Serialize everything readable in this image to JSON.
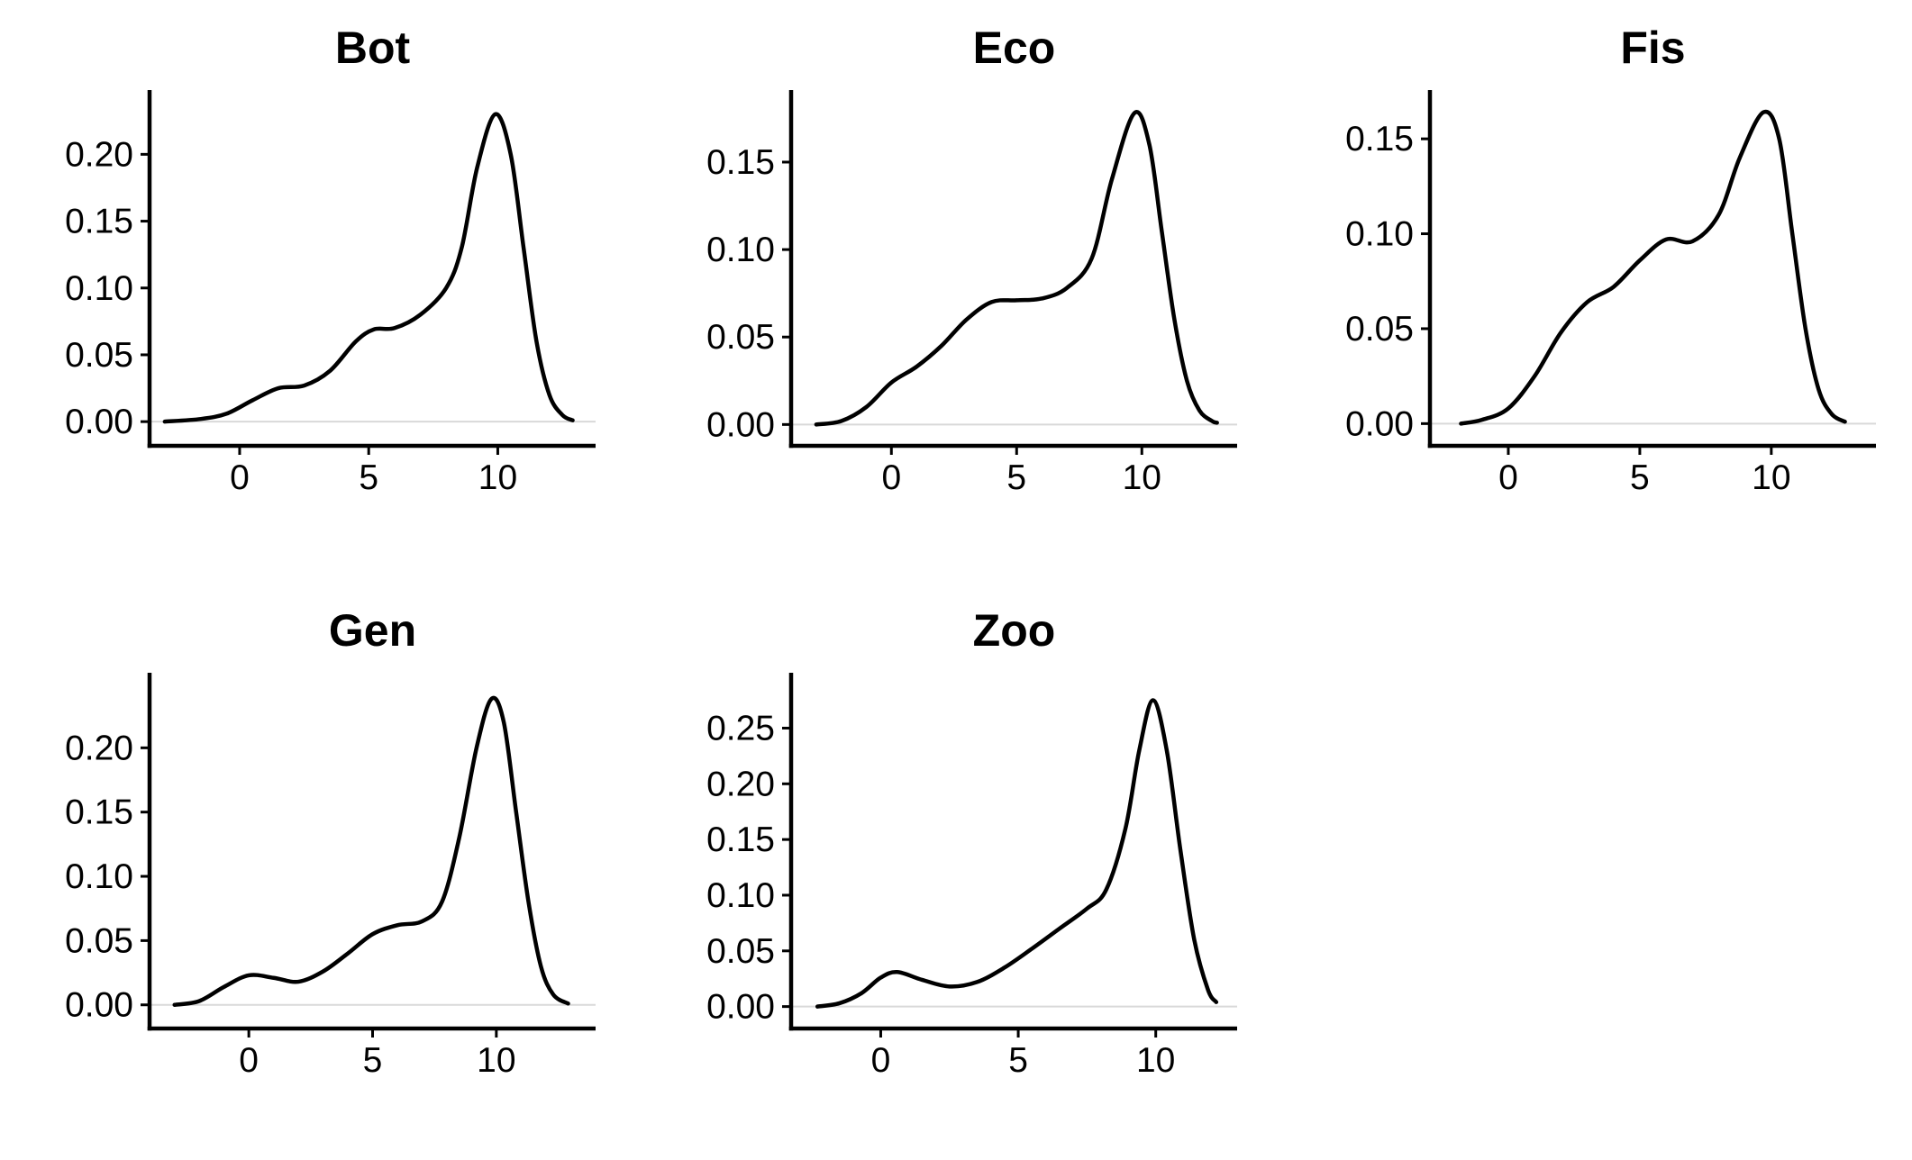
{
  "chart_data": [
    {
      "type": "line",
      "title": "Bot",
      "xlabel": "",
      "ylabel": "",
      "xlim": [
        -3,
        13.3
      ],
      "ylim": [
        -0.01,
        0.24
      ],
      "xticks": [
        0,
        5,
        10
      ],
      "xtick_labels": [
        "0",
        "5",
        "10"
      ],
      "yticks": [
        0,
        0.05,
        0.1,
        0.15,
        0.2
      ],
      "ytick_labels": [
        "0.00",
        "0.05",
        "0.10",
        "0.15",
        "0.20"
      ],
      "grid": false,
      "legend": "none",
      "series": [
        {
          "x": [
            -2.9,
            -1.5,
            -0.5,
            0.5,
            1.5,
            2.5,
            3.5,
            4.5,
            5.2,
            6.0,
            7.0,
            8.0,
            8.6,
            9.2,
            9.9,
            10.5,
            11.0,
            11.5,
            12.0,
            12.5,
            12.9
          ],
          "y": [
            0.0,
            0.002,
            0.006,
            0.016,
            0.025,
            0.027,
            0.038,
            0.06,
            0.069,
            0.07,
            0.08,
            0.1,
            0.13,
            0.19,
            0.23,
            0.2,
            0.13,
            0.06,
            0.02,
            0.005,
            0.001
          ]
        }
      ]
    },
    {
      "type": "line",
      "title": "Eco",
      "xlabel": "",
      "ylabel": "",
      "xlim": [
        -3.5,
        13.3
      ],
      "ylim": [
        -0.006,
        0.185
      ],
      "xticks": [
        0,
        5,
        10
      ],
      "xtick_labels": [
        "0",
        "5",
        "10"
      ],
      "yticks": [
        0,
        0.05,
        0.1,
        0.15
      ],
      "ytick_labels": [
        "0.00",
        "0.05",
        "0.10",
        "0.15"
      ],
      "grid": false,
      "legend": "none",
      "series": [
        {
          "x": [
            -3.0,
            -2.0,
            -1.0,
            0.0,
            1.0,
            2.0,
            3.0,
            4.0,
            5.0,
            6.0,
            7.0,
            8.0,
            8.8,
            9.7,
            10.3,
            10.8,
            11.3,
            11.8,
            12.3,
            12.8,
            13.0
          ],
          "y": [
            0.0,
            0.002,
            0.01,
            0.024,
            0.033,
            0.045,
            0.06,
            0.07,
            0.071,
            0.072,
            0.078,
            0.095,
            0.14,
            0.178,
            0.16,
            0.11,
            0.06,
            0.025,
            0.008,
            0.002,
            0.001
          ]
        }
      ]
    },
    {
      "type": "line",
      "title": "Fis",
      "xlabel": "",
      "ylabel": "",
      "xlim": [
        -2.5,
        13.5
      ],
      "ylim": [
        -0.006,
        0.17
      ],
      "xticks": [
        0,
        5,
        10
      ],
      "xtick_labels": [
        "0",
        "5",
        "10"
      ],
      "yticks": [
        0,
        0.05,
        0.1,
        0.15
      ],
      "ytick_labels": [
        "0.00",
        "0.05",
        "0.10",
        "0.15"
      ],
      "grid": false,
      "legend": "none",
      "series": [
        {
          "x": [
            -1.8,
            -1.0,
            0.0,
            1.0,
            2.0,
            3.0,
            4.0,
            5.0,
            6.0,
            7.0,
            8.0,
            8.8,
            9.7,
            10.3,
            10.8,
            11.3,
            11.8,
            12.3,
            12.8
          ],
          "y": [
            0.0,
            0.002,
            0.008,
            0.025,
            0.048,
            0.064,
            0.072,
            0.086,
            0.097,
            0.096,
            0.11,
            0.14,
            0.164,
            0.15,
            0.1,
            0.05,
            0.018,
            0.005,
            0.001
          ]
        }
      ]
    },
    {
      "type": "line",
      "title": "Gen",
      "xlabel": "",
      "ylabel": "",
      "xlim": [
        -3.5,
        13.5
      ],
      "ylim": [
        -0.01,
        0.25
      ],
      "xticks": [
        0,
        5,
        10
      ],
      "xtick_labels": [
        "0",
        "5",
        "10"
      ],
      "yticks": [
        0,
        0.05,
        0.1,
        0.15,
        0.2
      ],
      "ytick_labels": [
        "0.00",
        "0.05",
        "0.10",
        "0.15",
        "0.20"
      ],
      "grid": false,
      "legend": "none",
      "series": [
        {
          "x": [
            -3.0,
            -2.0,
            -1.0,
            0.0,
            1.0,
            2.0,
            3.0,
            4.0,
            5.0,
            6.0,
            7.0,
            7.8,
            8.5,
            9.2,
            9.8,
            10.3,
            10.8,
            11.3,
            11.8,
            12.3,
            12.9
          ],
          "y": [
            0.0,
            0.003,
            0.014,
            0.023,
            0.021,
            0.018,
            0.026,
            0.04,
            0.055,
            0.062,
            0.065,
            0.08,
            0.13,
            0.2,
            0.238,
            0.22,
            0.15,
            0.08,
            0.03,
            0.008,
            0.001
          ]
        }
      ]
    },
    {
      "type": "line",
      "title": "Zoo",
      "xlabel": "",
      "ylabel": "",
      "xlim": [
        -2.8,
        12.5
      ],
      "ylim": [
        -0.01,
        0.29
      ],
      "xticks": [
        0,
        5,
        10
      ],
      "xtick_labels": [
        "0",
        "5",
        "10"
      ],
      "yticks": [
        0,
        0.05,
        0.1,
        0.15,
        0.2,
        0.25
      ],
      "ytick_labels": [
        "0.00",
        "0.05",
        "0.10",
        "0.15",
        "0.20",
        "0.25"
      ],
      "grid": false,
      "legend": "none",
      "series": [
        {
          "x": [
            -2.3,
            -1.5,
            -0.7,
            0.0,
            0.6,
            1.5,
            2.5,
            3.5,
            4.5,
            5.5,
            6.5,
            7.5,
            8.2,
            8.9,
            9.4,
            9.9,
            10.4,
            10.9,
            11.4,
            11.9,
            12.2
          ],
          "y": [
            0.0,
            0.003,
            0.012,
            0.026,
            0.031,
            0.024,
            0.018,
            0.022,
            0.035,
            0.052,
            0.07,
            0.088,
            0.105,
            0.16,
            0.23,
            0.275,
            0.23,
            0.14,
            0.06,
            0.015,
            0.004
          ]
        }
      ]
    }
  ]
}
